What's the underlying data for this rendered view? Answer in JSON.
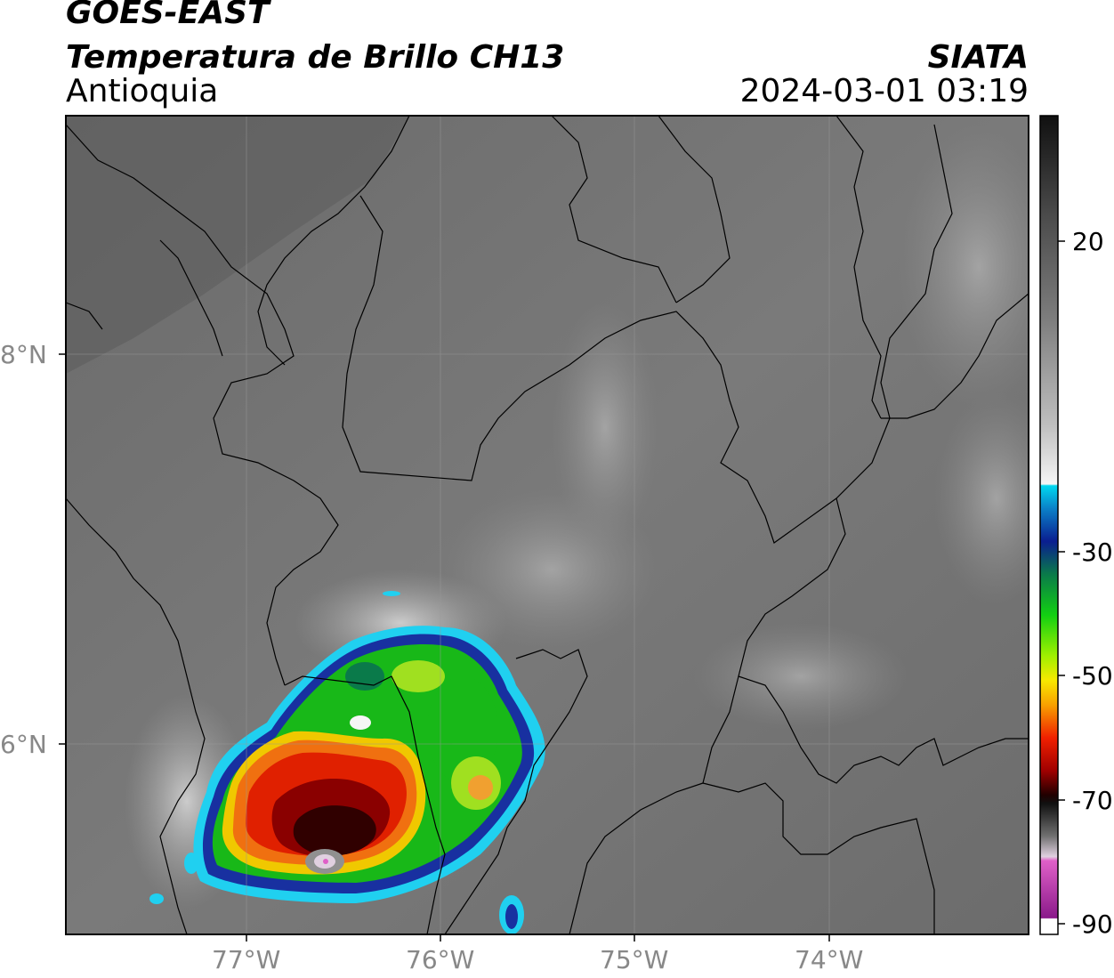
{
  "header": {
    "satellite": "GOES-EAST",
    "product": "Temperatura de Brillo CH13",
    "region": "Antioquia",
    "agency": "SIATA",
    "datetime": "2024-03-01 03:19"
  },
  "axes": {
    "lat_labels": [
      "8°N",
      "6°N"
    ],
    "lon_labels": [
      "77°W",
      "76°W",
      "75°W",
      "74°W"
    ]
  },
  "colorbar": {
    "ticks": [
      "20",
      "-30",
      "-50",
      "-70",
      "-90"
    ],
    "tick_values": [
      20,
      -30,
      -50,
      -70,
      -90
    ],
    "range": [
      -92,
      37
    ]
  },
  "colors": {
    "background_gray": "#6e6e6e",
    "coldest_magenta": "#c040c0",
    "cloud_cyan": "#20d0f0",
    "cloud_blue": "#1830a0",
    "cloud_green": "#20b020",
    "cloud_yellow": "#f0e020",
    "cloud_red": "#e02000",
    "cloud_dark_red": "#500000"
  }
}
